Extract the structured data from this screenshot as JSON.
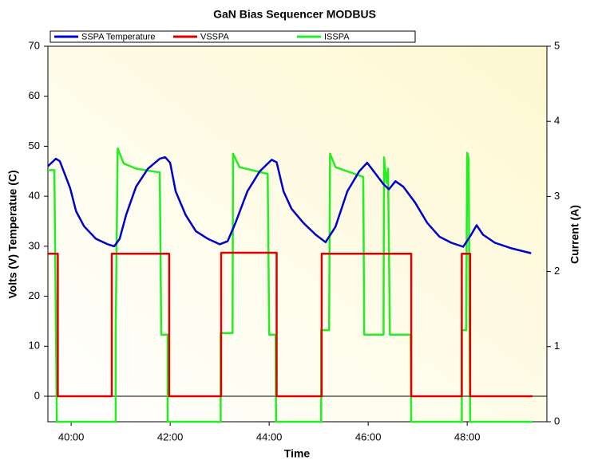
{
  "chart_data": {
    "type": "line",
    "title": "GaN Bias Sequencer MODBUS",
    "x_label": "Time",
    "y_label": "Volts (V) Temperatue (C)",
    "y2_label": "Current (A)",
    "legend": "top",
    "xlim": [
      39.53,
      49.61
    ],
    "xticks": [
      {
        "value": 40,
        "label": "40:00"
      },
      {
        "value": 42,
        "label": "42:00"
      },
      {
        "value": 44,
        "label": "44:00"
      },
      {
        "value": 46,
        "label": "46:00"
      },
      {
        "value": 48,
        "label": "48:00"
      }
    ],
    "ylim": [
      -5.1,
      70
    ],
    "yticks": [
      0,
      10,
      20,
      30,
      40,
      50,
      60,
      70
    ],
    "y2lim": [
      0,
      5
    ],
    "y2ticks": [
      0,
      1,
      2,
      3,
      4,
      5
    ],
    "series": [
      {
        "name": "SSPA Temperature",
        "color": "#0000cc",
        "x": [
          39.53,
          39.69,
          39.77,
          39.85,
          39.98,
          40.1,
          40.26,
          40.5,
          40.74,
          40.87,
          40.98,
          41.11,
          41.31,
          41.55,
          41.79,
          41.9,
          42.0,
          42.11,
          42.31,
          42.52,
          42.76,
          43.0,
          43.16,
          43.32,
          43.56,
          43.81,
          44.05,
          44.15,
          44.29,
          44.45,
          44.69,
          44.94,
          45.14,
          45.34,
          45.58,
          45.82,
          45.98,
          46.11,
          46.31,
          46.42,
          46.55,
          46.71,
          46.95,
          47.19,
          47.44,
          47.68,
          47.92,
          48.08,
          48.19,
          48.32,
          48.56,
          48.89,
          49.29
        ],
        "values": [
          46,
          47.5,
          47,
          45,
          41.6,
          37,
          34,
          31.5,
          30.4,
          30,
          31.5,
          36.3,
          41.9,
          45.5,
          47.5,
          47.8,
          46.7,
          41,
          36.3,
          33,
          31.5,
          30.4,
          31,
          34.7,
          41,
          45,
          47.3,
          46.8,
          41,
          37.5,
          34.7,
          32.3,
          30.8,
          33.9,
          41,
          45,
          46.7,
          45,
          42.4,
          41.4,
          43,
          41.9,
          38.7,
          34.7,
          31.9,
          30.7,
          29.9,
          32.3,
          34.2,
          32.3,
          30.7,
          29.6,
          28.6
        ]
      },
      {
        "name": "VSSPA",
        "color": "#dd0000",
        "x": [
          39.53,
          39.73,
          39.73,
          40.82,
          40.82,
          41.98,
          41.98,
          43.03,
          43.03,
          44.15,
          44.15,
          45.06,
          45.06,
          46.87,
          46.87,
          47.89,
          47.89,
          48.06,
          48.06,
          49.32
        ],
        "values": [
          28.5,
          28.5,
          0,
          0,
          28.5,
          28.5,
          0,
          0,
          28.7,
          28.7,
          0,
          0,
          28.5,
          28.5,
          0,
          0,
          28.5,
          28.5,
          0,
          0
        ]
      },
      {
        "name": "ISSPA",
        "color": "#22ee22",
        "axis": "y2",
        "x": [
          39.53,
          39.66,
          39.71,
          40.9,
          40.9,
          40.94,
          41.06,
          41.31,
          41.79,
          41.82,
          41.95,
          41.95,
          43.02,
          43.02,
          43.26,
          43.27,
          43.4,
          43.97,
          44.0,
          44.13,
          44.14,
          45.05,
          45.05,
          45.21,
          45.23,
          45.34,
          45.9,
          45.92,
          46.31,
          46.32,
          46.37,
          46.4,
          46.44,
          46.86,
          46.87,
          47.89,
          47.89,
          47.98,
          48.0,
          48.03,
          48.06,
          49.32
        ],
        "values": [
          3.35,
          3.35,
          0,
          0,
          1.22,
          3.64,
          3.44,
          3.37,
          3.32,
          1.16,
          1.16,
          0,
          0,
          1.18,
          1.18,
          3.57,
          3.39,
          3.3,
          1.16,
          1.16,
          0,
          0,
          1.22,
          1.22,
          3.57,
          3.39,
          3.26,
          1.16,
          1.16,
          3.52,
          3.18,
          3.37,
          1.16,
          1.16,
          0,
          0,
          1.22,
          1.22,
          3.58,
          3.5,
          0,
          0
        ]
      }
    ]
  }
}
